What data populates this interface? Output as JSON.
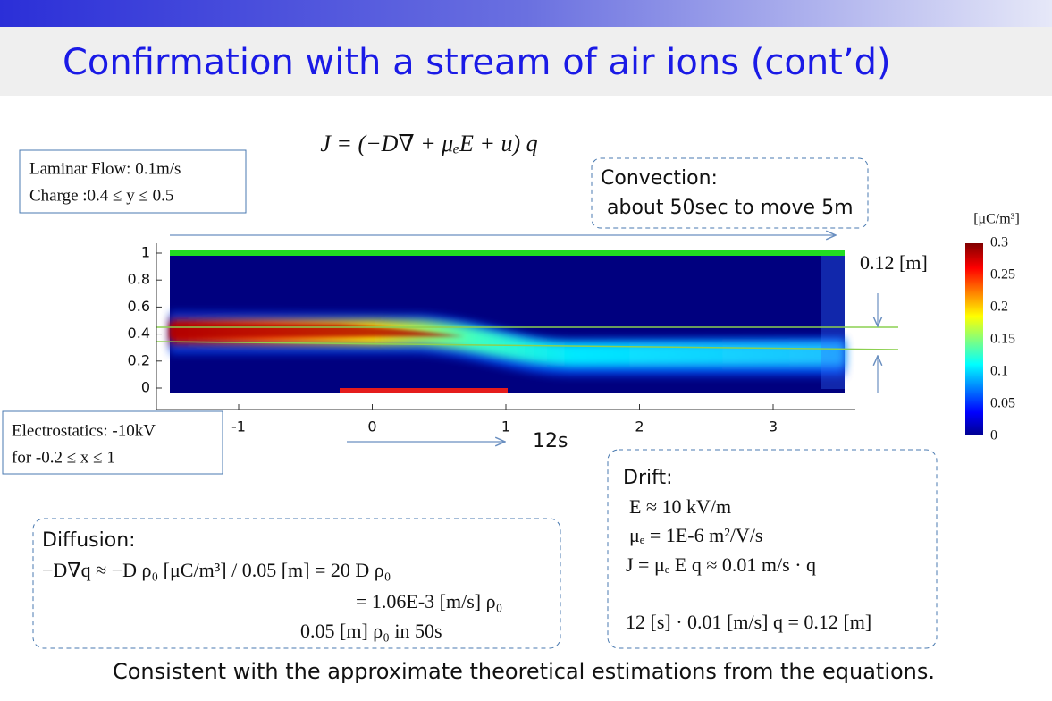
{
  "header": {
    "title": "Confirmation with a stream of air ions (cont’d)"
  },
  "equation": "J = (−D∇ + μₑE + u) q",
  "laminar_box": {
    "lines": [
      "Laminar Flow: 0.1m/s",
      "Charge :0.4 ≤ y ≤ 0.5"
    ]
  },
  "convection_box": {
    "lines": [
      "Convection:",
      "about 50sec to move 5m"
    ]
  },
  "plot": {
    "x_ticks": [
      "-1",
      "0",
      "1",
      "2",
      "3"
    ],
    "y_ticks": [
      "1",
      "0.8",
      "0.6",
      "0.4",
      "0.2",
      "0"
    ],
    "height_label": "0.12 [m]",
    "time_label": "12s",
    "colorbar": {
      "unit": "[μC/m³]",
      "ticks": [
        "0.3",
        "0.25",
        "0.2",
        "0.15",
        "0.1",
        "0.05",
        "0"
      ]
    }
  },
  "electrostatics_box": {
    "lines": [
      "Electrostatics: -10kV",
      "for -0.2 ≤ x ≤ 1"
    ]
  },
  "drift_box": {
    "lines": [
      "Drift:",
      "E  ≈ 10 kV/m",
      "μₑ = 1E-6 m²/V/s",
      "J =  μₑ E q  ≈ 0.01 m/s · q",
      "12 [s] · 0.01 [m/s] q = 0.12 [m]"
    ]
  },
  "diffusion_box": {
    "lines": [
      "Diffusion:",
      "−D∇q ≈ −D ρ₀ [μC/m³] / 0.05 [m] = 20 D ρ₀",
      "= 1.06E-3 [m/s] ρ₀",
      "0.05 [m] ρ₀  in 50s"
    ]
  },
  "conclusion": "Consistent with the approximate theoretical estimations from the equations."
}
